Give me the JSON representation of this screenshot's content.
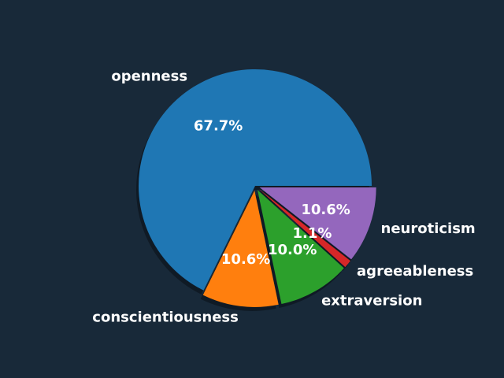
{
  "background": "#182939",
  "chart_data": {
    "type": "pie",
    "title": "",
    "shadow": true,
    "start_angle_deg": 0,
    "direction": "counterclockwise",
    "slices": [
      {
        "label": "openness",
        "value": 67.7,
        "pct_label": "67.7%",
        "color": "#1f77b4",
        "exploded": false
      },
      {
        "label": "conscientiousness",
        "value": 10.6,
        "pct_label": "10.6%",
        "color": "#ff7f0e",
        "exploded": true
      },
      {
        "label": "extraversion",
        "value": 10.0,
        "pct_label": "10.0%",
        "color": "#2ca02c",
        "exploded": true
      },
      {
        "label": "agreeableness",
        "value": 1.1,
        "pct_label": "1.1%",
        "color": "#d62728",
        "exploded": true
      },
      {
        "label": "neuroticism",
        "value": 10.6,
        "pct_label": "10.6%",
        "color": "#9467bd",
        "exploded": true
      }
    ]
  }
}
